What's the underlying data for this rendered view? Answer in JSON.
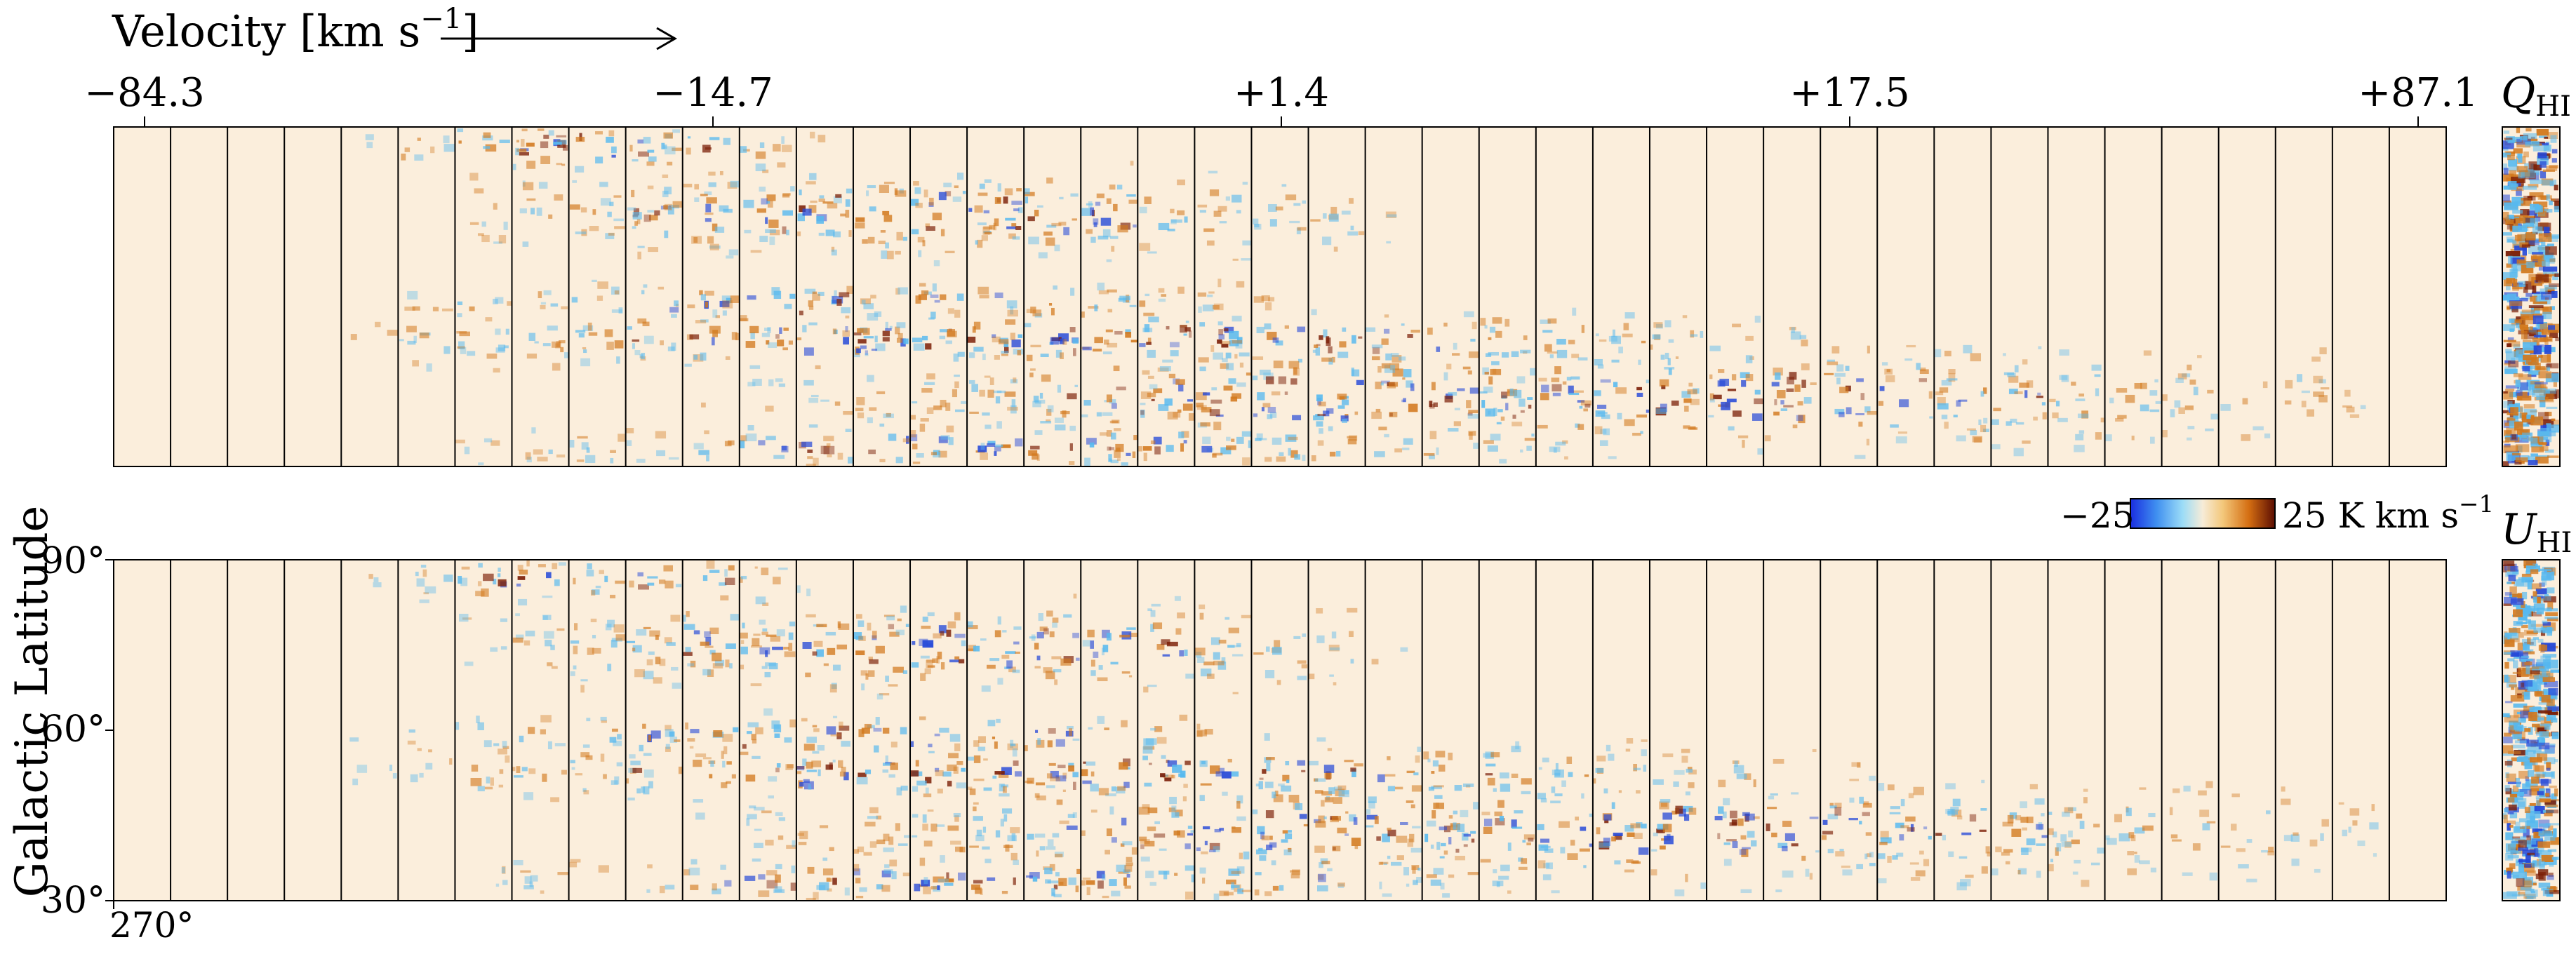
{
  "chart_data": {
    "type": "heatmap",
    "velocity_axis": {
      "title": "Velocity [km s",
      "title_exponent": "−1",
      "title_close": "]",
      "tick_labels": [
        "−84.3",
        "−14.7",
        "+1.4",
        "+17.5",
        "+87.1"
      ]
    },
    "channel_count": 41,
    "panels": [
      {
        "label_main": "Q",
        "label_sub": "HI"
      },
      {
        "label_main": "U",
        "label_sub": "HI"
      }
    ],
    "y_axis": {
      "title": "Galactic Latitude",
      "tick_labels": [
        "90°",
        "60°",
        "30°"
      ],
      "tick_values": [
        90,
        60,
        30
      ],
      "range": [
        30,
        90
      ]
    },
    "x_axis": {
      "tick_labels": [
        "270°"
      ]
    },
    "colorbar": {
      "min_label": "−25",
      "max_label": "25 K km s",
      "unit_exponent": "−1",
      "range": [
        -25,
        25
      ],
      "colors": [
        "#1a2ee0",
        "#3f8ff0",
        "#9bdcf7",
        "#f7ecd8",
        "#f3c77a",
        "#d46e12",
        "#5b0d02"
      ]
    },
    "colors": {
      "background_map": "#fbeedc",
      "positive": "#d2781c",
      "strong_positive": "#7a1d05",
      "negative": "#57b9ef",
      "strong_negative": "#2448d8"
    }
  }
}
